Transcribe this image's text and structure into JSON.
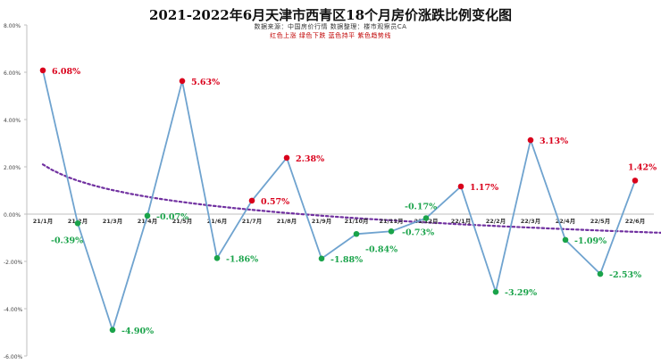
{
  "chart_data": {
    "type": "line",
    "title": "2021-2022年6月天津市西青区18个月房价涨跌比例变化图",
    "subtitle": "数据来源：中国房价行情    数据整理：楼市观察员CA",
    "legend_note": "红色上涨    绿色下跌    蓝色持平    紫色趋势线",
    "categories": [
      "21/1月",
      "21/2月",
      "21/3月",
      "21/4月",
      "21/5月",
      "21/6月",
      "21/7月",
      "21/8月",
      "21/9月",
      "21/10月",
      "21/11月",
      "21/12月",
      "22/1月",
      "22/2月",
      "22/3月",
      "22/4月",
      "22/5月",
      "22/6月"
    ],
    "values": [
      6.08,
      -0.39,
      -4.9,
      -0.07,
      5.63,
      -1.86,
      0.57,
      2.38,
      -1.88,
      -0.84,
      -0.73,
      -0.17,
      1.17,
      -3.29,
      3.13,
      -1.09,
      -2.53,
      1.42
    ],
    "data_labels": [
      "6.08%",
      "-0.39%",
      "-4.90%",
      "-0.07%",
      "5.63%",
      "-1.86%",
      "0.57%",
      "2.38%",
      "-1.88%",
      "-0.84%",
      "-0.73%",
      "-0.17%",
      "1.17%",
      "-3.29%",
      "3.13%",
      "-1.09%",
      "-2.53%",
      "1.42%"
    ],
    "y_ticks": [
      8,
      6,
      4,
      2,
      0,
      -2,
      -4,
      -6
    ],
    "y_tick_labels": [
      "8.00%",
      "6.00%",
      "4.00%",
      "2.00%",
      "0.00%",
      "-2.00%",
      "-4.00%",
      "-6.00%"
    ],
    "ylim": [
      -6,
      8
    ],
    "trendline": {
      "type": "logarithmic",
      "start": 2.1,
      "end": -0.75
    },
    "grid": false,
    "colors": {
      "up": "#d9001b",
      "down": "#1aa34a",
      "line": "#6fa3cf",
      "trend": "#7030a0"
    }
  }
}
